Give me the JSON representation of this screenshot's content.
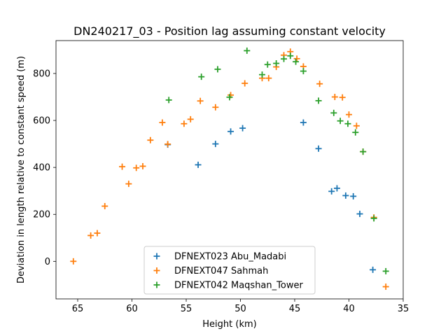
{
  "chart_data": {
    "type": "scatter",
    "title": "DN240217_03 - Position lag assuming constant velocity",
    "xlabel": "Height (km)",
    "ylabel": "Deviation in length relative to constant speed (m)",
    "xlim": [
      67,
      35
    ],
    "ylim": [
      -160,
      940
    ],
    "x_ticks": [
      65,
      60,
      55,
      50,
      45,
      40,
      35
    ],
    "y_ticks": [
      0,
      200,
      400,
      600,
      800
    ],
    "grid": false,
    "legend_position": "lower center",
    "marker": "+",
    "series": [
      {
        "name": "DFNEXT023 Abu_Madabi",
        "color": "#1f77b4",
        "points": [
          [
            56.7,
            497
          ],
          [
            53.9,
            411
          ],
          [
            52.3,
            500
          ],
          [
            50.9,
            553
          ],
          [
            49.8,
            567
          ],
          [
            44.2,
            591
          ],
          [
            42.8,
            480
          ],
          [
            41.6,
            298
          ],
          [
            41.1,
            311
          ],
          [
            40.3,
            280
          ],
          [
            39.6,
            277
          ],
          [
            39.0,
            202
          ],
          [
            37.8,
            -36
          ]
        ]
      },
      {
        "name": "DFNEXT047 Sahmah",
        "color": "#ff7f0e",
        "points": [
          [
            65.4,
            0
          ],
          [
            63.8,
            110
          ],
          [
            63.2,
            120
          ],
          [
            62.5,
            235
          ],
          [
            60.9,
            403
          ],
          [
            60.3,
            330
          ],
          [
            59.6,
            398
          ],
          [
            59.0,
            405
          ],
          [
            58.3,
            516
          ],
          [
            57.2,
            591
          ],
          [
            56.7,
            499
          ],
          [
            55.2,
            586
          ],
          [
            54.6,
            605
          ],
          [
            53.7,
            683
          ],
          [
            52.3,
            656
          ],
          [
            50.9,
            708
          ],
          [
            49.6,
            758
          ],
          [
            48.0,
            780
          ],
          [
            47.4,
            780
          ],
          [
            46.7,
            828
          ],
          [
            46.0,
            878
          ],
          [
            45.4,
            893
          ],
          [
            44.8,
            863
          ],
          [
            44.2,
            830
          ],
          [
            42.7,
            756
          ],
          [
            41.3,
            700
          ],
          [
            40.6,
            698
          ],
          [
            40.0,
            625
          ],
          [
            39.3,
            577
          ],
          [
            38.7,
            467
          ],
          [
            37.7,
            187
          ],
          [
            36.6,
            -108
          ]
        ]
      },
      {
        "name": "DFNEXT042 Maqshan_Tower",
        "color": "#2ca02c",
        "points": [
          [
            56.6,
            687
          ],
          [
            53.6,
            786
          ],
          [
            52.1,
            818
          ],
          [
            51.0,
            699
          ],
          [
            49.4,
            897
          ],
          [
            48.0,
            795
          ],
          [
            47.5,
            838
          ],
          [
            46.7,
            843
          ],
          [
            46.0,
            862
          ],
          [
            45.4,
            875
          ],
          [
            44.9,
            850
          ],
          [
            44.2,
            810
          ],
          [
            42.8,
            684
          ],
          [
            41.4,
            632
          ],
          [
            40.8,
            598
          ],
          [
            40.1,
            586
          ],
          [
            39.4,
            549
          ],
          [
            38.7,
            467
          ],
          [
            37.7,
            183
          ],
          [
            36.6,
            -42
          ]
        ]
      }
    ]
  }
}
